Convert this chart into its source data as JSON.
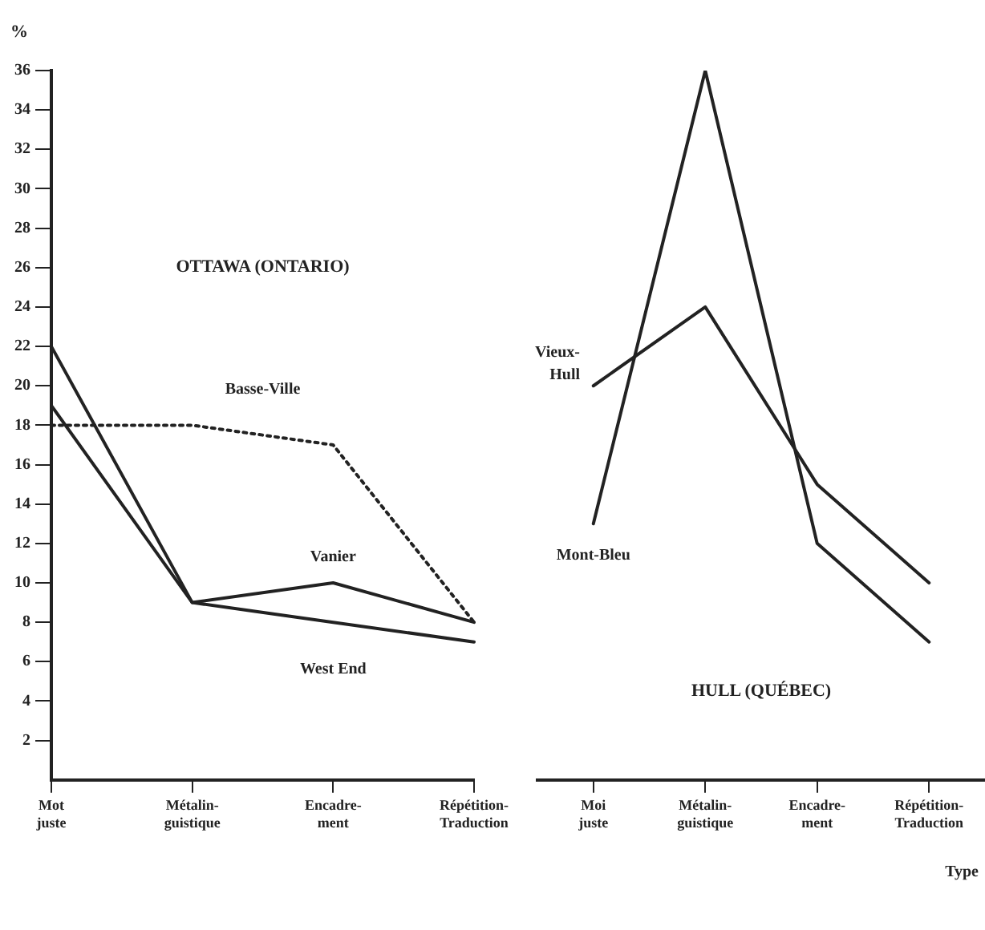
{
  "chart_data": [
    {
      "type": "line",
      "title": "OTTAWA (ONTARIO)",
      "ylabel": "%",
      "categories": [
        "Mot juste",
        "Métalin-guistique",
        "Encadre-ment",
        "Répétition-Traduction"
      ],
      "series": [
        {
          "name": "Basse-Ville",
          "color": "#222222",
          "line_style": "dotted",
          "values": [
            18,
            18,
            17,
            8
          ]
        },
        {
          "name": "Vanier",
          "color": "#222222",
          "values": [
            22,
            9,
            10,
            8
          ]
        },
        {
          "name": "West End",
          "color": "#222222",
          "values": [
            19,
            9,
            8,
            7
          ]
        }
      ],
      "ylim": [
        0,
        36
      ],
      "yticks": [
        2,
        4,
        6,
        8,
        10,
        12,
        14,
        16,
        18,
        20,
        22,
        24,
        26,
        28,
        30,
        32,
        34,
        36
      ],
      "legend": false,
      "marker": "none",
      "line_style": "solid"
    },
    {
      "type": "line",
      "title": "HULL (QUÉBEC)",
      "xlabel": "Type",
      "categories": [
        "Moi juste",
        "Métalin-guistique",
        "Encadre-ment",
        "Répétition-Traduction"
      ],
      "series": [
        {
          "name": "Vieux-Hull",
          "color": "#222222",
          "values": [
            20,
            24,
            15,
            10
          ]
        },
        {
          "name": "Mont-Bleu",
          "color": "#222222",
          "values": [
            13,
            36,
            12,
            7
          ]
        }
      ],
      "ylim": [
        0,
        36
      ],
      "yticks": [
        2,
        4,
        6,
        8,
        10,
        12,
        14,
        16,
        18,
        20,
        22,
        24,
        26,
        28,
        30,
        32,
        34,
        36
      ],
      "tick_labels": "x",
      "legend": false,
      "marker": "none",
      "line_style": "solid"
    }
  ]
}
